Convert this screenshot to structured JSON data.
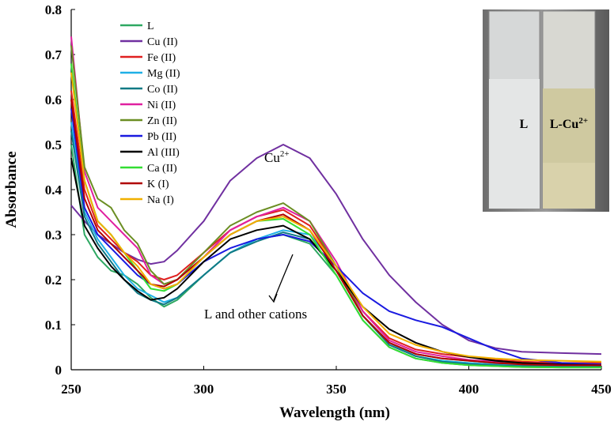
{
  "chart_data": {
    "type": "line",
    "x_label": "Wavelength  (nm)",
    "y_label": "Absorbance",
    "x": [
      250,
      255,
      260,
      265,
      270,
      275,
      280,
      285,
      290,
      300,
      310,
      320,
      330,
      340,
      350,
      360,
      370,
      380,
      390,
      400,
      410,
      420,
      435,
      450
    ],
    "xlim": [
      250,
      450
    ],
    "xticks": [
      250,
      300,
      350,
      400,
      450
    ],
    "ylim": [
      0,
      0.8
    ],
    "yticks": [
      0,
      0.1,
      0.2,
      0.3,
      0.4,
      0.5,
      0.6,
      0.7,
      0.8
    ],
    "series": [
      {
        "name": "L",
        "color": "#2ea862",
        "values": [
          0.5,
          0.3,
          0.25,
          0.22,
          0.21,
          0.19,
          0.16,
          0.14,
          0.155,
          0.21,
          0.26,
          0.29,
          0.3,
          0.28,
          0.21,
          0.11,
          0.05,
          0.025,
          0.015,
          0.01,
          0.008,
          0.006,
          0.005,
          0.005
        ]
      },
      {
        "name": "Cu (II)",
        "color": "#7030a0",
        "values": [
          0.365,
          0.33,
          0.3,
          0.28,
          0.26,
          0.245,
          0.235,
          0.24,
          0.265,
          0.33,
          0.42,
          0.47,
          0.5,
          0.47,
          0.39,
          0.29,
          0.21,
          0.15,
          0.1,
          0.065,
          0.048,
          0.04,
          0.037,
          0.035
        ]
      },
      {
        "name": "Fe (II)",
        "color": "#e02020",
        "values": [
          0.62,
          0.4,
          0.32,
          0.29,
          0.26,
          0.24,
          0.21,
          0.2,
          0.21,
          0.26,
          0.31,
          0.34,
          0.355,
          0.32,
          0.23,
          0.13,
          0.07,
          0.045,
          0.035,
          0.028,
          0.022,
          0.018,
          0.015,
          0.015
        ]
      },
      {
        "name": "Mg (II)",
        "color": "#1fb0e6",
        "values": [
          0.55,
          0.35,
          0.29,
          0.25,
          0.21,
          0.18,
          0.165,
          0.15,
          0.16,
          0.21,
          0.26,
          0.29,
          0.31,
          0.3,
          0.23,
          0.12,
          0.06,
          0.03,
          0.02,
          0.015,
          0.012,
          0.01,
          0.01,
          0.01
        ]
      },
      {
        "name": "Co (II)",
        "color": "#107a85",
        "values": [
          0.53,
          0.34,
          0.28,
          0.24,
          0.2,
          0.17,
          0.155,
          0.145,
          0.16,
          0.21,
          0.26,
          0.285,
          0.305,
          0.29,
          0.22,
          0.12,
          0.055,
          0.03,
          0.018,
          0.013,
          0.01,
          0.008,
          0.008,
          0.008
        ]
      },
      {
        "name": "Ni (II)",
        "color": "#e020a0",
        "values": [
          0.74,
          0.44,
          0.36,
          0.33,
          0.3,
          0.27,
          0.21,
          0.19,
          0.2,
          0.25,
          0.31,
          0.34,
          0.36,
          0.33,
          0.24,
          0.13,
          0.065,
          0.04,
          0.03,
          0.022,
          0.018,
          0.015,
          0.013,
          0.012
        ]
      },
      {
        "name": "Zn (II)",
        "color": "#6b8e23",
        "values": [
          0.72,
          0.45,
          0.38,
          0.36,
          0.31,
          0.28,
          0.22,
          0.19,
          0.2,
          0.26,
          0.32,
          0.35,
          0.37,
          0.33,
          0.23,
          0.12,
          0.06,
          0.035,
          0.025,
          0.02,
          0.015,
          0.013,
          0.012,
          0.012
        ]
      },
      {
        "name": "Pb (II)",
        "color": "#1a1ae0",
        "values": [
          0.58,
          0.36,
          0.3,
          0.27,
          0.24,
          0.21,
          0.19,
          0.18,
          0.19,
          0.24,
          0.27,
          0.29,
          0.3,
          0.285,
          0.23,
          0.17,
          0.13,
          0.11,
          0.095,
          0.07,
          0.045,
          0.025,
          0.015,
          0.012
        ]
      },
      {
        "name": "Al (III)",
        "color": "#000000",
        "values": [
          0.47,
          0.32,
          0.27,
          0.23,
          0.2,
          0.175,
          0.155,
          0.16,
          0.18,
          0.24,
          0.29,
          0.31,
          0.32,
          0.29,
          0.22,
          0.14,
          0.09,
          0.06,
          0.04,
          0.028,
          0.02,
          0.015,
          0.012,
          0.01
        ]
      },
      {
        "name": "Ca (II)",
        "color": "#33dd33",
        "values": [
          0.68,
          0.42,
          0.33,
          0.3,
          0.26,
          0.22,
          0.18,
          0.175,
          0.19,
          0.25,
          0.3,
          0.33,
          0.335,
          0.3,
          0.21,
          0.11,
          0.05,
          0.025,
          0.015,
          0.01,
          0.008,
          0.006,
          0.005,
          0.005
        ]
      },
      {
        "name": "K (I)",
        "color": "#b00000",
        "values": [
          0.6,
          0.38,
          0.31,
          0.28,
          0.25,
          0.22,
          0.19,
          0.185,
          0.2,
          0.25,
          0.3,
          0.33,
          0.345,
          0.31,
          0.22,
          0.12,
          0.06,
          0.035,
          0.025,
          0.02,
          0.015,
          0.012,
          0.01,
          0.01
        ]
      },
      {
        "name": "Na (I)",
        "color": "#f0b000",
        "values": [
          0.66,
          0.42,
          0.33,
          0.3,
          0.26,
          0.23,
          0.19,
          0.18,
          0.19,
          0.25,
          0.3,
          0.33,
          0.34,
          0.31,
          0.23,
          0.14,
          0.08,
          0.055,
          0.04,
          0.03,
          0.025,
          0.022,
          0.02,
          0.018
        ]
      }
    ],
    "annotations": [
      {
        "text": "Cu",
        "sup": "2+"
      },
      {
        "text": "L and other cations"
      }
    ]
  },
  "inset": {
    "labels": [
      {
        "text": "L"
      },
      {
        "text": "L-Cu",
        "sup": "2+"
      }
    ]
  }
}
